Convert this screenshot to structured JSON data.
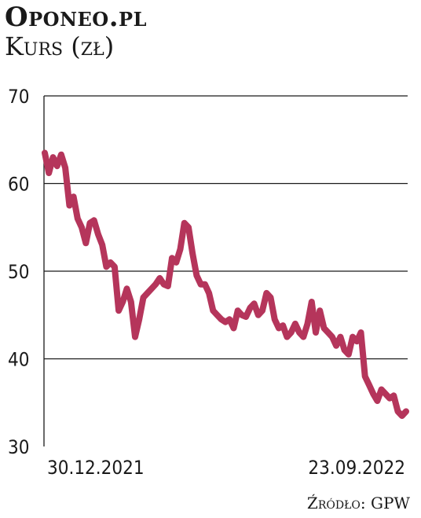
{
  "chart_data": {
    "type": "line",
    "title": "Oponeo.pl",
    "subtitle": "Kurs (zł)",
    "source": "Źródło: GPW",
    "xlabel": "",
    "ylabel": "",
    "ylim": [
      30,
      70
    ],
    "yticks": [
      30,
      40,
      50,
      60,
      70
    ],
    "grid": true,
    "x_tick_labels": [
      "30.12.2021",
      "23.09.2022"
    ],
    "line_color": "#b5355b",
    "series": [
      {
        "values": [
          63.5,
          61.2,
          63.0,
          62.0,
          63.3,
          61.8,
          57.5,
          58.5,
          56.0,
          55.0,
          53.2,
          55.5,
          55.8,
          54.2,
          53.0,
          50.5,
          51.0,
          50.5,
          45.5,
          46.5,
          48.0,
          46.5,
          42.5,
          44.5,
          47.0,
          47.5,
          48.0,
          48.5,
          49.2,
          48.5,
          48.3,
          51.5,
          51.0,
          52.5,
          55.5,
          55.0,
          52.0,
          49.5,
          48.5,
          48.5,
          47.5,
          45.5,
          45.0,
          44.5,
          44.2,
          44.5,
          43.5,
          45.5,
          45.0,
          44.8,
          45.8,
          46.3,
          45.0,
          45.5,
          47.5,
          47.0,
          44.5,
          43.5,
          43.8,
          42.5,
          43.0,
          44.0,
          43.0,
          42.5,
          44.0,
          46.5,
          43.0,
          45.5,
          43.5,
          43.0,
          42.5,
          41.5,
          42.5,
          41.0,
          40.5,
          42.5,
          42.0,
          43.0,
          38.0,
          37.0,
          36.0,
          35.2,
          36.5,
          36.0,
          35.5,
          35.8,
          34.0,
          33.5,
          34.0
        ]
      }
    ]
  }
}
